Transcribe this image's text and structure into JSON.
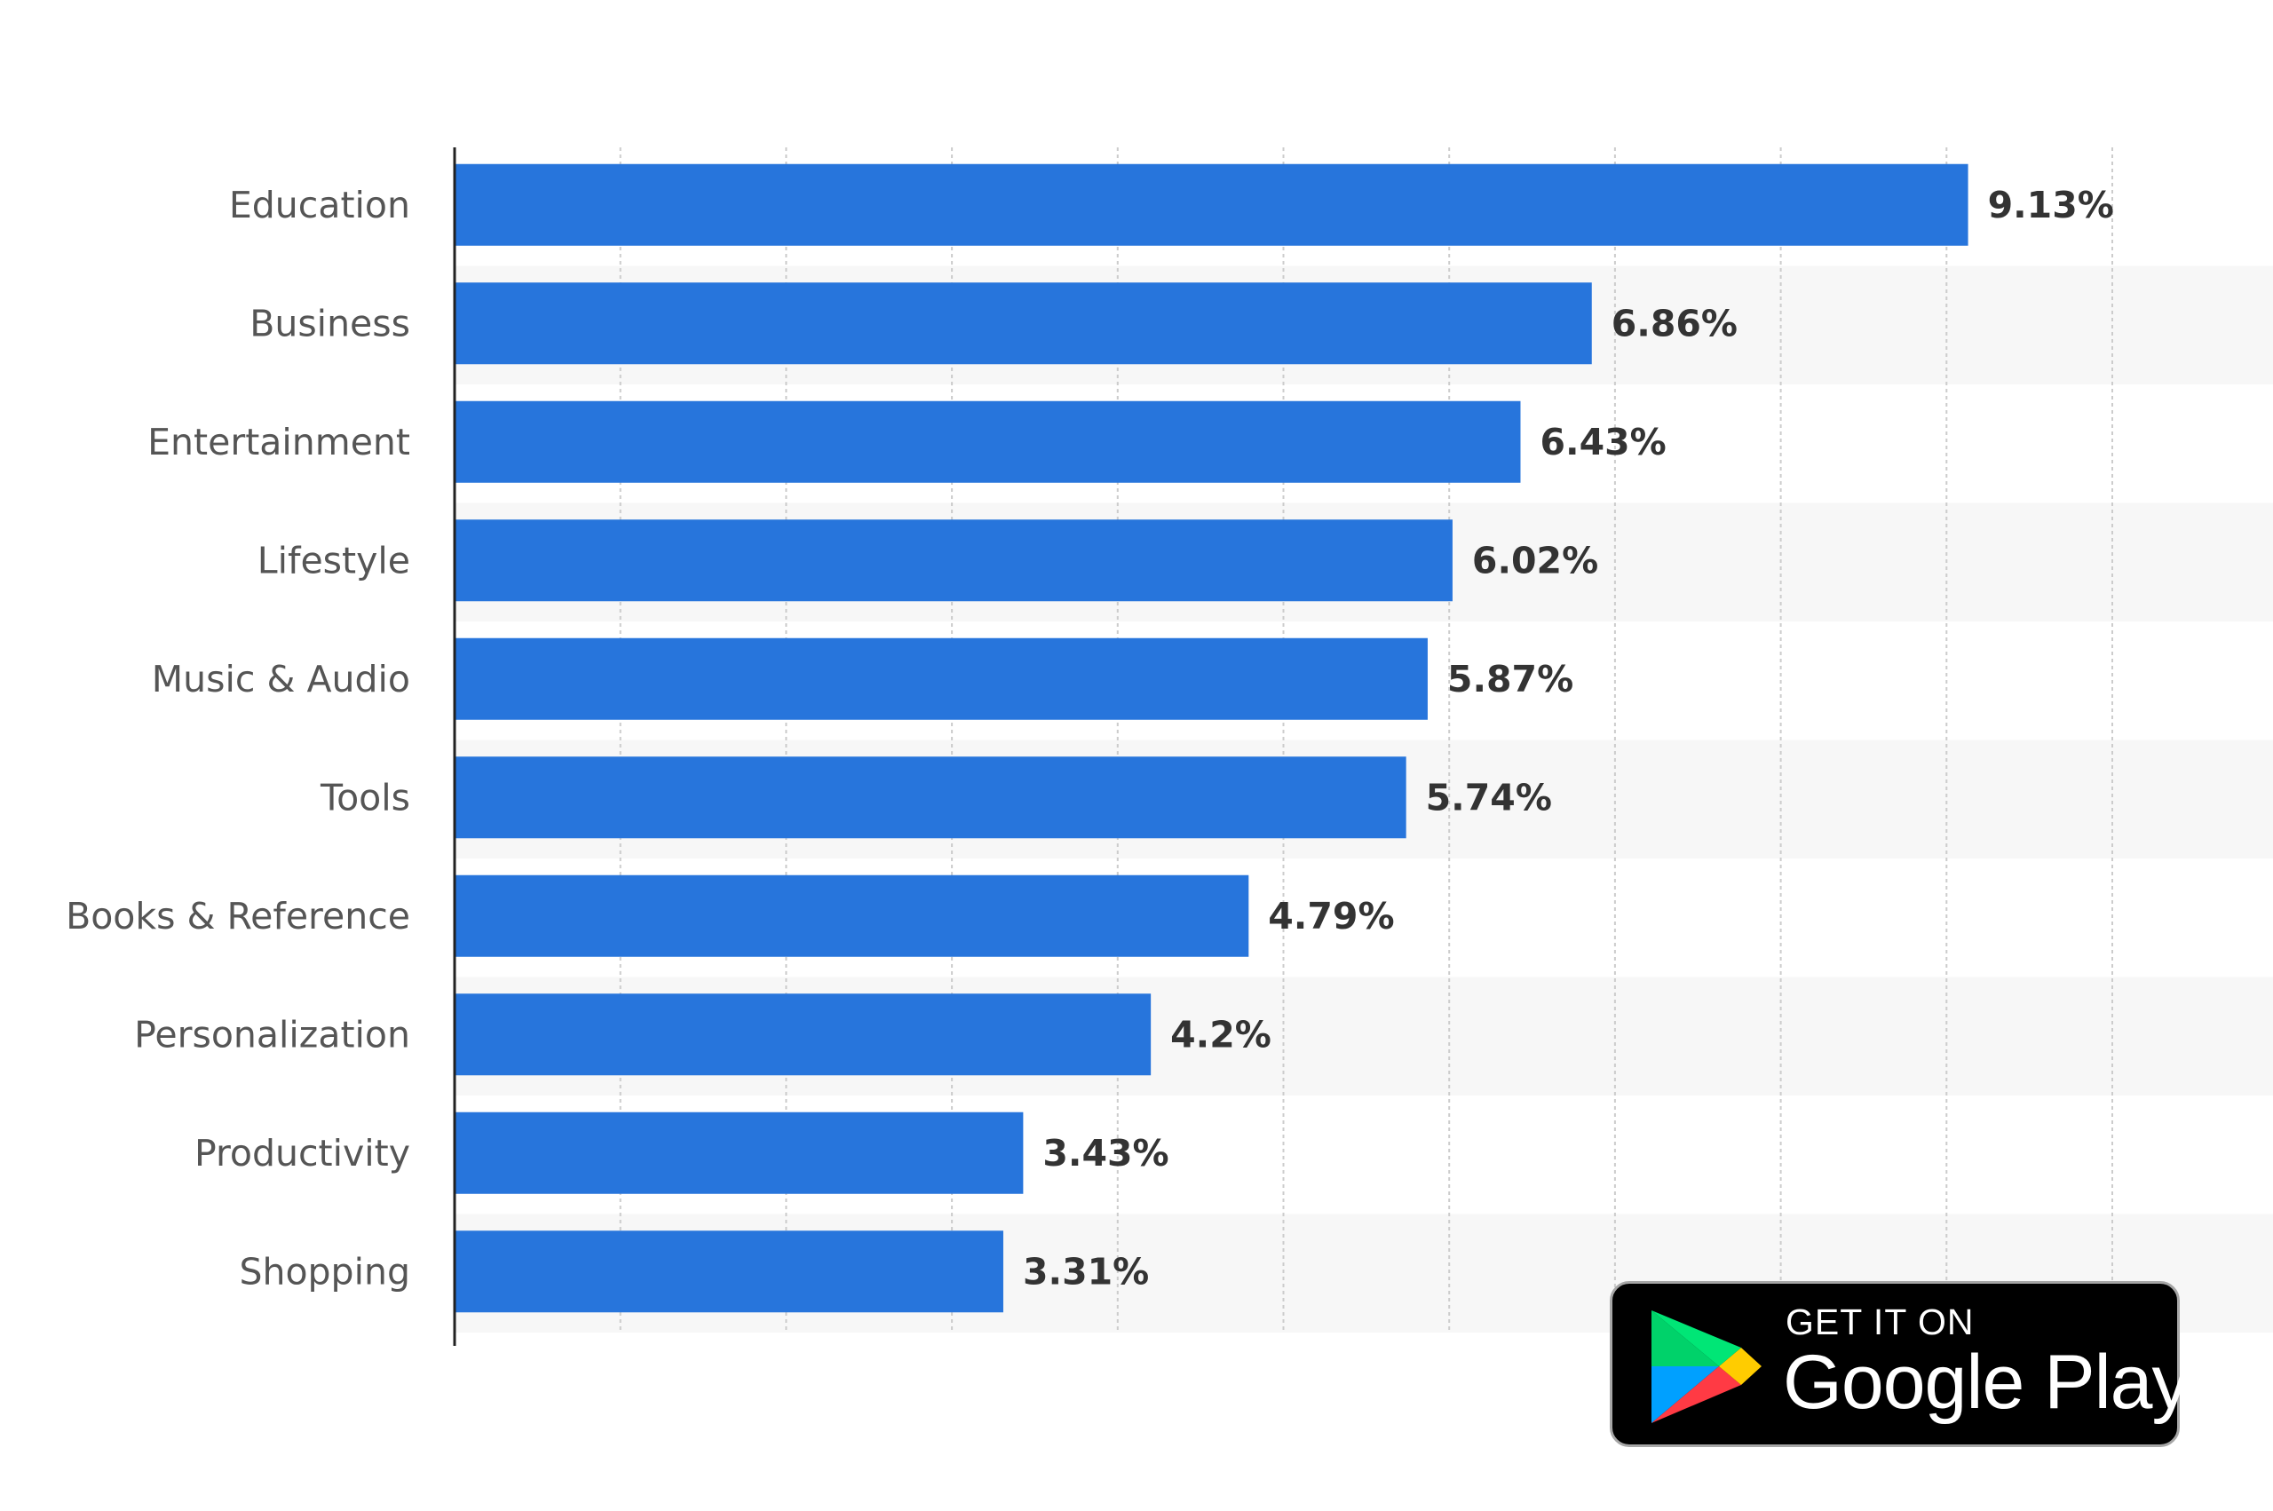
{
  "chart_data": {
    "type": "bar",
    "orientation": "horizontal",
    "categories": [
      "Education",
      "Business",
      "Entertainment",
      "Lifestyle",
      "Music & Audio",
      "Tools",
      "Books & Reference",
      "Personalization",
      "Productivity",
      "Shopping"
    ],
    "values": [
      9.13,
      6.86,
      6.43,
      6.02,
      5.87,
      5.74,
      4.79,
      4.2,
      3.43,
      3.31
    ],
    "value_labels": [
      "9.13%",
      "6.86%",
      "6.43%",
      "6.02%",
      "5.87%",
      "5.74%",
      "4.79%",
      "4.2%",
      "3.43%",
      "3.31%"
    ],
    "xlim": [
      0,
      10
    ],
    "grid": true,
    "bar_color": "#2775dc",
    "stripe_color": "#f7f7f7"
  },
  "badge": {
    "line1": "GET IT ON",
    "line2": "Google Play",
    "logo_icon": "google-play-triangle-icon",
    "colors": {
      "green": "#00d26a",
      "blue": "#00a0ff",
      "yellow": "#ffcc00",
      "red": "#ff3a44"
    }
  }
}
